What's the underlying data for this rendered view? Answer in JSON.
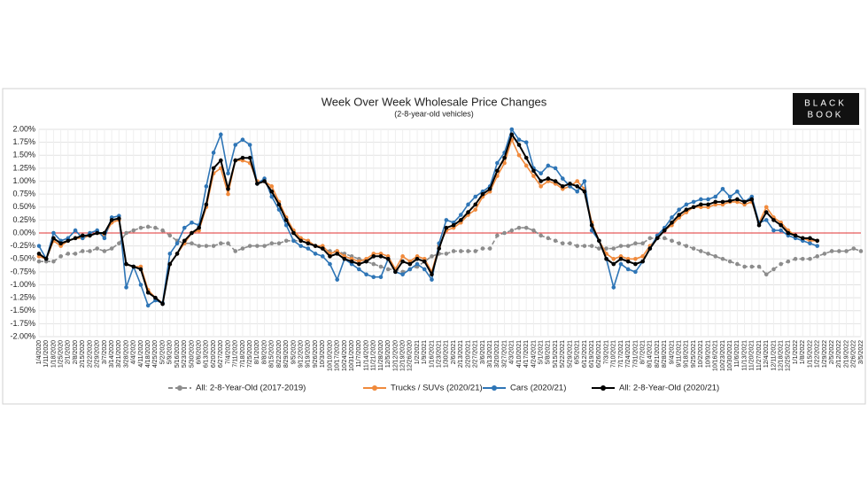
{
  "chart_data": {
    "type": "line",
    "title": "Week Over Week Wholesale Price Changes",
    "subtitle": "(2-8-year-old vehicles)",
    "logo": [
      "BLACK",
      "BOOK"
    ],
    "categories": [
      "1/4/2020",
      "1/11/2020",
      "1/18/2020",
      "1/25/2020",
      "2/1/2020",
      "2/8/2020",
      "2/15/2020",
      "2/22/2020",
      "2/29/2020",
      "3/7/2020",
      "3/14/2020",
      "3/21/2020",
      "3/28/2020",
      "4/4/2020",
      "4/11/2020",
      "4/18/2020",
      "4/25/2020",
      "5/2/2020",
      "5/9/2020",
      "5/16/2020",
      "5/23/2020",
      "5/30/2020",
      "6/6/2020",
      "6/13/2020",
      "6/20/2020",
      "6/27/2020",
      "7/4/2020",
      "7/11/2020",
      "7/18/2020",
      "7/25/2020",
      "8/1/2020",
      "8/8/2020",
      "8/15/2020",
      "8/22/2020",
      "8/29/2020",
      "9/5/2020",
      "9/12/2020",
      "9/19/2020",
      "9/26/2020",
      "10/3/2020",
      "10/10/2020",
      "10/17/2020",
      "10/24/2020",
      "10/31/2020",
      "11/7/2020",
      "11/14/2020",
      "11/21/2020",
      "11/28/2020",
      "12/5/2020",
      "12/12/2020",
      "12/19/2020",
      "12/26/2020",
      "1/2/2021",
      "1/9/2021",
      "1/16/2021",
      "1/23/2021",
      "1/30/2021",
      "2/6/2021",
      "2/13/2021",
      "2/20/2021",
      "2/27/2021",
      "3/6/2021",
      "3/13/2021",
      "3/20/2021",
      "3/27/2021",
      "4/3/2021",
      "4/10/2021",
      "4/17/2021",
      "4/24/2021",
      "5/1/2021",
      "5/8/2021",
      "5/15/2021",
      "5/22/2021",
      "5/29/2021",
      "6/5/2021",
      "6/12/2021",
      "6/19/2021",
      "6/26/2021",
      "7/3/2021",
      "7/10/2021",
      "7/17/2021",
      "7/24/2021",
      "7/31/2021",
      "8/7/2021",
      "8/14/2021",
      "8/21/2021",
      "8/28/2021",
      "9/4/2021",
      "9/11/2021",
      "9/18/2021",
      "9/25/2021",
      "10/2/2021",
      "10/9/2021",
      "10/16/2021",
      "10/23/2021",
      "10/30/2021",
      "11/6/2021",
      "11/13/2021",
      "11/20/2021",
      "11/27/2021",
      "12/4/2021",
      "12/11/2021",
      "12/18/2021",
      "12/25/2021",
      "1/1/2022",
      "1/8/2022",
      "1/15/2022",
      "1/22/2022",
      "1/29/2022",
      "2/5/2022",
      "2/12/2022",
      "2/19/2022",
      "2/26/2022",
      "3/5/2022"
    ],
    "series": [
      {
        "name": "All: 2-8-Year-Old (2017-2019)",
        "color": "#8c8c8c",
        "dashed": true,
        "values": [
          -0.55,
          -0.55,
          -0.55,
          -0.45,
          -0.4,
          -0.4,
          -0.35,
          -0.35,
          -0.3,
          -0.35,
          -0.3,
          -0.2,
          0,
          0.05,
          0.1,
          0.12,
          0.1,
          0.05,
          -0.05,
          -0.15,
          -0.2,
          -0.2,
          -0.25,
          -0.25,
          -0.25,
          -0.2,
          -0.2,
          -0.35,
          -0.3,
          -0.25,
          -0.25,
          -0.25,
          -0.2,
          -0.2,
          -0.15,
          -0.15,
          -0.15,
          -0.2,
          -0.25,
          -0.3,
          -0.35,
          -0.35,
          -0.4,
          -0.45,
          -0.5,
          -0.55,
          -0.6,
          -0.65,
          -0.7,
          -0.7,
          -0.75,
          -0.7,
          -0.65,
          -0.55,
          -0.45,
          -0.4,
          -0.4,
          -0.35,
          -0.35,
          -0.35,
          -0.35,
          -0.3,
          -0.3,
          -0.05,
          0,
          0.05,
          0.1,
          0.1,
          0.05,
          -0.05,
          -0.1,
          -0.15,
          -0.2,
          -0.2,
          -0.25,
          -0.25,
          -0.25,
          -0.3,
          -0.3,
          -0.3,
          -0.25,
          -0.25,
          -0.2,
          -0.2,
          -0.1,
          -0.1,
          -0.1,
          -0.15,
          -0.2,
          -0.25,
          -0.3,
          -0.35,
          -0.4,
          -0.45,
          -0.5,
          -0.55,
          -0.6,
          -0.65,
          -0.65,
          -0.65,
          -0.8,
          -0.7,
          -0.6,
          -0.55,
          -0.5,
          -0.5,
          -0.5,
          -0.45,
          -0.4,
          -0.35,
          -0.35,
          -0.35,
          -0.3,
          -0.35
        ]
      },
      {
        "name": "Trucks / SUVs (2020/21)",
        "color": "#f08a3c",
        "dashed": false,
        "values": [
          -0.45,
          -0.5,
          -0.15,
          -0.25,
          -0.15,
          -0.1,
          -0.1,
          -0.05,
          0,
          -0.05,
          0.2,
          0.25,
          -0.6,
          -0.65,
          -0.65,
          -1.1,
          -1.25,
          -1.35,
          -0.6,
          -0.4,
          -0.2,
          0,
          0.05,
          0.5,
          1.15,
          1.25,
          0.75,
          1.4,
          1.4,
          1.35,
          1,
          1,
          0.9,
          0.6,
          0.3,
          0.05,
          -0.1,
          -0.15,
          -0.25,
          -0.25,
          -0.4,
          -0.35,
          -0.45,
          -0.5,
          -0.55,
          -0.5,
          -0.4,
          -0.4,
          -0.45,
          -0.7,
          -0.45,
          -0.55,
          -0.45,
          -0.5,
          -0.75,
          -0.25,
          0.05,
          0.1,
          0.2,
          0.35,
          0.45,
          0.7,
          0.8,
          1.1,
          1.35,
          1.8,
          1.5,
          1.3,
          1.1,
          0.9,
          1,
          0.95,
          0.85,
          0.9,
          1,
          0.85,
          0.2,
          -0.15,
          -0.4,
          -0.5,
          -0.45,
          -0.5,
          -0.5,
          -0.45,
          -0.25,
          -0.1,
          0.05,
          0.15,
          0.3,
          0.4,
          0.5,
          0.5,
          0.5,
          0.55,
          0.55,
          0.6,
          0.6,
          0.55,
          0.6,
          0.2,
          0.5,
          0.3,
          0.2,
          0.05,
          -0.05,
          -0.1,
          -0.15,
          -0.15,
          null,
          null,
          null,
          null,
          null,
          null
        ]
      },
      {
        "name": "Cars (2020/21)",
        "color": "#2e75b6",
        "dashed": false,
        "values": [
          -0.25,
          -0.5,
          0,
          -0.15,
          -0.1,
          0.05,
          -0.1,
          0,
          0.05,
          -0.1,
          0.3,
          0.33,
          -1.05,
          -0.65,
          -1,
          -1.4,
          -1.3,
          -1.35,
          -0.4,
          -0.2,
          0.1,
          0.2,
          0.15,
          0.9,
          1.55,
          1.9,
          1.15,
          1.7,
          1.8,
          1.7,
          0.95,
          1.05,
          0.7,
          0.45,
          0.15,
          -0.15,
          -0.25,
          -0.3,
          -0.4,
          -0.45,
          -0.6,
          -0.9,
          -0.5,
          -0.6,
          -0.7,
          -0.8,
          -0.85,
          -0.85,
          -0.5,
          -0.75,
          -0.8,
          -0.7,
          -0.6,
          -0.7,
          -0.9,
          -0.2,
          0.25,
          0.2,
          0.35,
          0.55,
          0.7,
          0.8,
          0.9,
          1.35,
          1.55,
          2,
          1.8,
          1.75,
          1.25,
          1.15,
          1.3,
          1.25,
          1.05,
          0.9,
          0.8,
          1,
          0.05,
          -0.15,
          -0.5,
          -1.05,
          -0.6,
          -0.7,
          -0.75,
          -0.55,
          -0.3,
          -0.05,
          0.1,
          0.3,
          0.45,
          0.55,
          0.6,
          0.65,
          0.65,
          0.7,
          0.85,
          0.7,
          0.8,
          0.6,
          0.7,
          0.2,
          0.25,
          0.05,
          0.05,
          -0.05,
          -0.1,
          -0.15,
          -0.2,
          -0.25,
          null,
          null,
          null,
          null,
          null,
          null
        ]
      },
      {
        "name": "All: 2-8-Year-Old (2020/21)",
        "color": "#000000",
        "dashed": false,
        "values": [
          -0.4,
          -0.5,
          -0.1,
          -0.2,
          -0.15,
          -0.1,
          -0.05,
          -0.05,
          0,
          0,
          0.25,
          0.28,
          -0.6,
          -0.65,
          -0.7,
          -1.15,
          -1.25,
          -1.37,
          -0.6,
          -0.4,
          -0.15,
          0,
          0.1,
          0.55,
          1.25,
          1.4,
          0.85,
          1.4,
          1.45,
          1.45,
          0.95,
          1,
          0.8,
          0.55,
          0.25,
          0,
          -0.15,
          -0.2,
          -0.25,
          -0.3,
          -0.45,
          -0.4,
          -0.5,
          -0.55,
          -0.6,
          -0.55,
          -0.45,
          -0.45,
          -0.5,
          -0.75,
          -0.55,
          -0.6,
          -0.5,
          -0.55,
          -0.8,
          -0.3,
          0.1,
          0.15,
          0.25,
          0.4,
          0.55,
          0.75,
          0.85,
          1.2,
          1.45,
          1.9,
          1.7,
          1.45,
          1.2,
          1,
          1.05,
          1,
          0.9,
          0.95,
          0.9,
          0.8,
          0.15,
          -0.15,
          -0.5,
          -0.6,
          -0.5,
          -0.55,
          -0.6,
          -0.55,
          -0.3,
          -0.1,
          0.05,
          0.2,
          0.35,
          0.45,
          0.5,
          0.55,
          0.55,
          0.6,
          0.6,
          0.62,
          0.65,
          0.6,
          0.65,
          0.15,
          0.4,
          0.25,
          0.15,
          0,
          -0.05,
          -0.1,
          -0.1,
          -0.15,
          null,
          null,
          null,
          null,
          null,
          null
        ]
      }
    ],
    "ylim": [
      -2,
      2
    ],
    "yticks": [
      {
        "value": 2,
        "label": "2.00%"
      },
      {
        "value": 1.75,
        "label": "1.75%"
      },
      {
        "value": 1.5,
        "label": "1.50%"
      },
      {
        "value": 1.25,
        "label": "1.25%"
      },
      {
        "value": 1,
        "label": "1.00%"
      },
      {
        "value": 0.75,
        "label": "0.75%"
      },
      {
        "value": 0.5,
        "label": "0.50%"
      },
      {
        "value": 0.25,
        "label": "0.25%"
      },
      {
        "value": 0,
        "label": "0.00%"
      },
      {
        "value": -0.25,
        "label": "-0.25%"
      },
      {
        "value": -0.5,
        "label": "-0.50%"
      },
      {
        "value": -0.75,
        "label": "-0.75%"
      },
      {
        "value": -1,
        "label": "-1.00%"
      },
      {
        "value": -1.25,
        "label": "-1.25%"
      },
      {
        "value": -1.5,
        "label": "-1.50%"
      },
      {
        "value": -1.75,
        "label": "-1.75%"
      },
      {
        "value": -2,
        "label": "-2.00%"
      }
    ],
    "grid": true,
    "zero_line_color": "#e03030",
    "legend": "bottom"
  }
}
